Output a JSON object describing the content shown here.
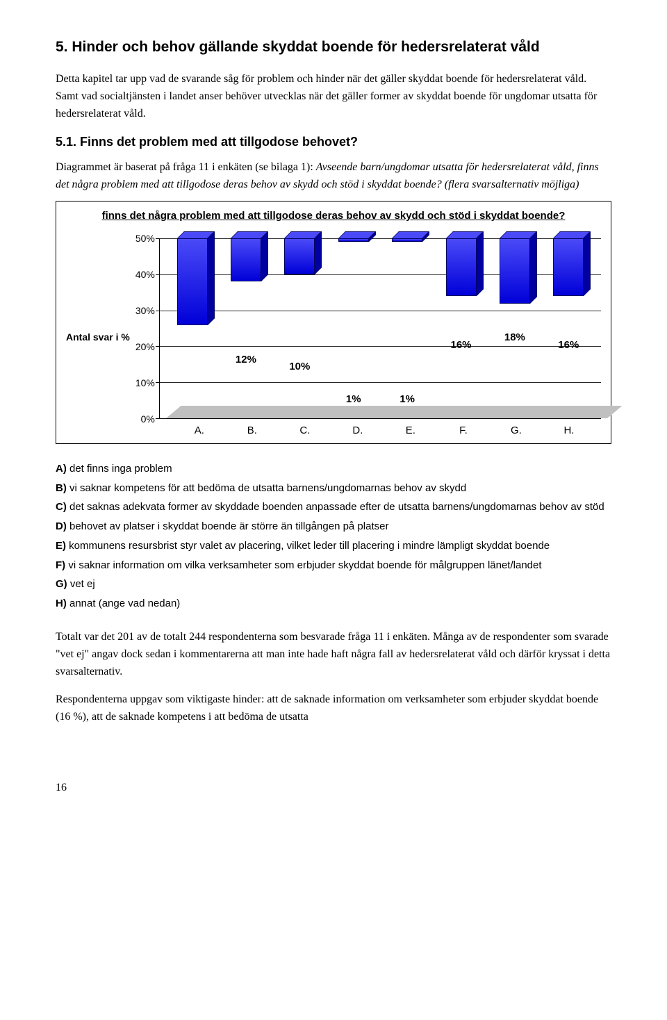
{
  "heading": "5. Hinder och behov gällande skyddat boende för hedersrelaterat våld",
  "intro": "Detta kapitel tar upp vad de svarande såg för problem och hinder när det gäller skyddat boende för hedersrelaterat våld. Samt vad socialtjänsten i landet anser behöver utvecklas när det gäller former av skyddat boende för ungdomar utsatta för hedersrelaterat våld.",
  "subheading": "5.1. Finns det problem med att tillgodose behovet?",
  "question_lead": "Diagrammet är baserat på fråga 11 i enkäten (se bilaga 1): ",
  "question_italic": "Avseende barn/ungdomar utsatta för hedersrelaterat våld, finns det några problem med att tillgodose deras behov av skydd och stöd i skyddat boende? (flera svarsalternativ möjliga)",
  "chart": {
    "title": "finns det några problem med att tillgodose deras behov av skydd och stöd i skyddat boende?",
    "y_axis_label": "Antal svar i %",
    "ylim_max": 50,
    "ytick_step": 10,
    "yticks": [
      "50%",
      "40%",
      "30%",
      "20%",
      "10%",
      "0%"
    ],
    "categories": [
      "A.",
      "B.",
      "C.",
      "D.",
      "E.",
      "F.",
      "G.",
      "H."
    ],
    "values": [
      24,
      12,
      10,
      1,
      1,
      16,
      18,
      16
    ],
    "value_labels": [
      "24%",
      "12%",
      "10%",
      "1%",
      "1%",
      "16%",
      "18%",
      "16%"
    ],
    "bar_color_front": "#0000d8",
    "bar_color_top": "#4a4af8",
    "bar_color_side": "#0000a0",
    "grid_color": "#000000",
    "floor_color": "#c0c0c0",
    "background_color": "#ffffff"
  },
  "legend": {
    "A": "det finns inga problem",
    "B": "vi saknar kompetens för att bedöma de utsatta barnens/ungdomarnas behov av skydd",
    "C": "det saknas adekvata former av skyddade boenden anpassade efter de utsatta barnens/ungdomarnas behov av stöd",
    "D": "behovet av platser i skyddat boende är större än tillgången på platser",
    "E": "kommunens resursbrist styr valet av placering, vilket leder till placering i mindre lämpligt skyddat boende",
    "F": "vi saknar information om vilka verksamheter som erbjuder skyddat boende för målgruppen länet/landet",
    "G": "vet ej",
    "H": "annat (ange vad nedan)"
  },
  "conclusion_p1": "Totalt var det 201 av de totalt 244 respondenterna som besvarade fråga 11 i enkäten. Många av de respondenter som svarade \"vet ej\" angav dock sedan i kommentarerna att man inte hade haft några fall av hedersrelaterat våld och därför kryssat i detta svarsalternativ.",
  "conclusion_p2": "Respondenterna uppgav som viktigaste hinder: att de saknade information om verksamheter som erbjuder skyddat boende (16 %), att de saknade kompetens i att bedöma de utsatta",
  "page_number": "16"
}
